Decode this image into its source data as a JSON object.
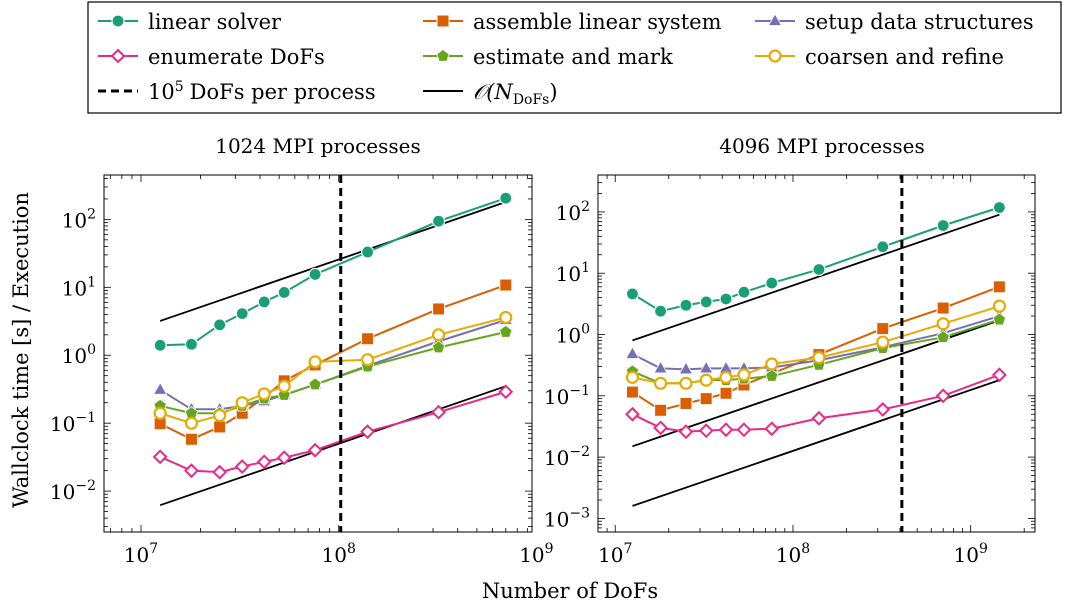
{
  "figure": {
    "xlabel": "Number of DoFs",
    "ylabel": "Wallclock time [s] / Execution"
  },
  "legend": {
    "placement": "top-center",
    "entries": [
      {
        "key": "linear",
        "label": "linear solver"
      },
      {
        "key": "assemble",
        "label": "assemble linear system"
      },
      {
        "key": "setup",
        "label": "setup data structures"
      },
      {
        "key": "enumerate",
        "label": "enumerate DoFs"
      },
      {
        "key": "estimate",
        "label": "estimate and mark"
      },
      {
        "key": "coarsen",
        "label": "coarsen and refine"
      },
      {
        "key": "dofs_line",
        "label": "DoFs per process",
        "prefix": "10",
        "sup": "5"
      },
      {
        "key": "order_line",
        "label": "𝒪(N",
        "sub": "DoFs",
        "suffix": ")"
      }
    ]
  },
  "series_styles": {
    "linear": {
      "color": "#1a9e77",
      "marker": "circle"
    },
    "assemble": {
      "color": "#d95f02",
      "marker": "square"
    },
    "setup": {
      "color": "#7570b3",
      "marker": "triangle"
    },
    "enumerate": {
      "color": "#e7298a",
      "marker": "diamond"
    },
    "estimate": {
      "color": "#66a61e",
      "marker": "pentagon"
    },
    "coarsen": {
      "color": "#e6ab02",
      "marker": "open-circle"
    }
  },
  "chart_data": [
    {
      "type": "line",
      "title": "1024 MPI processes",
      "log_x": true,
      "log_y": true,
      "xlim": [
        6500000.0,
        950000000.0
      ],
      "ylim": [
        0.0025,
        450
      ],
      "xticks": [
        {
          "v": 10000000.0,
          "b": "10",
          "e": "7"
        },
        {
          "v": 100000000.0,
          "b": "10",
          "e": "8"
        },
        {
          "v": 1000000000.0,
          "b": "10",
          "e": "9"
        }
      ],
      "yticks": [
        {
          "v": 0.01,
          "b": "10",
          "e": "−2"
        },
        {
          "v": 0.1,
          "b": "10",
          "e": "−1"
        },
        {
          "v": 1,
          "b": "10",
          "e": "0"
        },
        {
          "v": 10,
          "b": "10",
          "e": "1"
        },
        {
          "v": 100,
          "b": "10",
          "e": "2"
        }
      ],
      "x": [
        12500000.0,
        18000000.0,
        25000000.0,
        32500000.0,
        42000000.0,
        53000000.0,
        76000000.0,
        140000000.0,
        320000000.0,
        700000000.0
      ],
      "series": [
        {
          "key": "linear",
          "name": "linear solver",
          "values": [
            1.4,
            1.45,
            2.8,
            4.1,
            6.1,
            8.4,
            15.5,
            33,
            94,
            205
          ]
        },
        {
          "key": "assemble",
          "name": "assemble linear system",
          "values": [
            0.098,
            0.058,
            0.088,
            0.14,
            0.24,
            0.42,
            0.72,
            1.75,
            4.8,
            10.8
          ]
        },
        {
          "key": "setup",
          "name": "setup data structures",
          "values": [
            0.31,
            0.16,
            0.16,
            0.18,
            0.21,
            0.26,
            0.37,
            0.7,
            1.6,
            3.3
          ]
        },
        {
          "key": "enumerate",
          "name": "enumerate DoFs",
          "values": [
            0.032,
            0.02,
            0.019,
            0.023,
            0.027,
            0.031,
            0.04,
            0.075,
            0.145,
            0.29
          ]
        },
        {
          "key": "estimate",
          "name": "estimate and mark",
          "values": [
            0.18,
            0.14,
            0.14,
            0.18,
            0.23,
            0.26,
            0.37,
            0.68,
            1.3,
            2.2
          ]
        },
        {
          "key": "coarsen",
          "name": "coarsen and refine",
          "values": [
            0.14,
            0.1,
            0.13,
            0.2,
            0.27,
            0.35,
            0.8,
            0.86,
            2.0,
            3.6
          ]
        }
      ],
      "vline": {
        "key": "dofs_line",
        "x": 102400000.0
      },
      "reference_lines": [
        {
          "key": "order_line",
          "x": [
            12500000.0,
            700000000.0
          ],
          "y": [
            3.2,
            180
          ]
        },
        {
          "key": "order_line",
          "x": [
            12500000.0,
            700000000.0
          ],
          "y": [
            0.0062,
            0.35
          ]
        }
      ]
    },
    {
      "type": "line",
      "title": "4096 MPI processes",
      "log_x": true,
      "log_y": true,
      "xlim": [
        8000000.0,
        2300000000.0
      ],
      "ylim": [
        0.0006,
        400
      ],
      "xticks": [
        {
          "v": 10000000.0,
          "b": "10",
          "e": "7"
        },
        {
          "v": 100000000.0,
          "b": "10",
          "e": "8"
        },
        {
          "v": 1000000000.0,
          "b": "10",
          "e": "9"
        }
      ],
      "yticks": [
        {
          "v": 0.001,
          "b": "10",
          "e": "−3"
        },
        {
          "v": 0.01,
          "b": "10",
          "e": "−2"
        },
        {
          "v": 0.1,
          "b": "10",
          "e": "−1"
        },
        {
          "v": 1,
          "b": "10",
          "e": "0"
        },
        {
          "v": 10,
          "b": "10",
          "e": "1"
        },
        {
          "v": 100,
          "b": "10",
          "e": "2"
        }
      ],
      "x": [
        12500000.0,
        18000000.0,
        25000000.0,
        32500000.0,
        42000000.0,
        53000000.0,
        76000000.0,
        140000000.0,
        320000000.0,
        700000000.0,
        1450000000.0
      ],
      "series": [
        {
          "key": "linear",
          "name": "linear solver",
          "values": [
            4.6,
            2.4,
            3.0,
            3.4,
            3.8,
            4.9,
            6.9,
            11.5,
            27,
            60,
            118
          ]
        },
        {
          "key": "assemble",
          "name": "assemble linear system",
          "values": [
            0.115,
            0.058,
            0.075,
            0.09,
            0.11,
            0.15,
            0.23,
            0.47,
            1.25,
            2.7,
            6.0
          ]
        },
        {
          "key": "setup",
          "name": "setup data structures",
          "values": [
            0.48,
            0.28,
            0.27,
            0.28,
            0.28,
            0.28,
            0.29,
            0.38,
            0.62,
            1.05,
            2.0
          ]
        },
        {
          "key": "enumerate",
          "name": "enumerate DoFs",
          "values": [
            0.05,
            0.03,
            0.026,
            0.027,
            0.028,
            0.028,
            0.029,
            0.043,
            0.06,
            0.1,
            0.22
          ]
        },
        {
          "key": "estimate",
          "name": "estimate and mark",
          "values": [
            0.25,
            0.16,
            0.16,
            0.18,
            0.18,
            0.19,
            0.21,
            0.32,
            0.6,
            0.9,
            1.75
          ]
        },
        {
          "key": "coarsen",
          "name": "coarsen and refine",
          "values": [
            0.2,
            0.16,
            0.16,
            0.18,
            0.2,
            0.22,
            0.33,
            0.42,
            0.75,
            1.5,
            2.9
          ]
        }
      ],
      "vline": {
        "key": "dofs_line",
        "x": 410000000.0
      },
      "reference_lines": [
        {
          "key": "order_line",
          "x": [
            12500000.0,
            1450000000.0
          ],
          "y": [
            0.8,
            90
          ]
        },
        {
          "key": "order_line",
          "x": [
            12500000.0,
            1450000000.0
          ],
          "y": [
            0.015,
            1.7
          ]
        },
        {
          "key": "order_line",
          "x": [
            12500000.0,
            1450000000.0
          ],
          "y": [
            0.0016,
            0.18
          ]
        }
      ]
    }
  ]
}
